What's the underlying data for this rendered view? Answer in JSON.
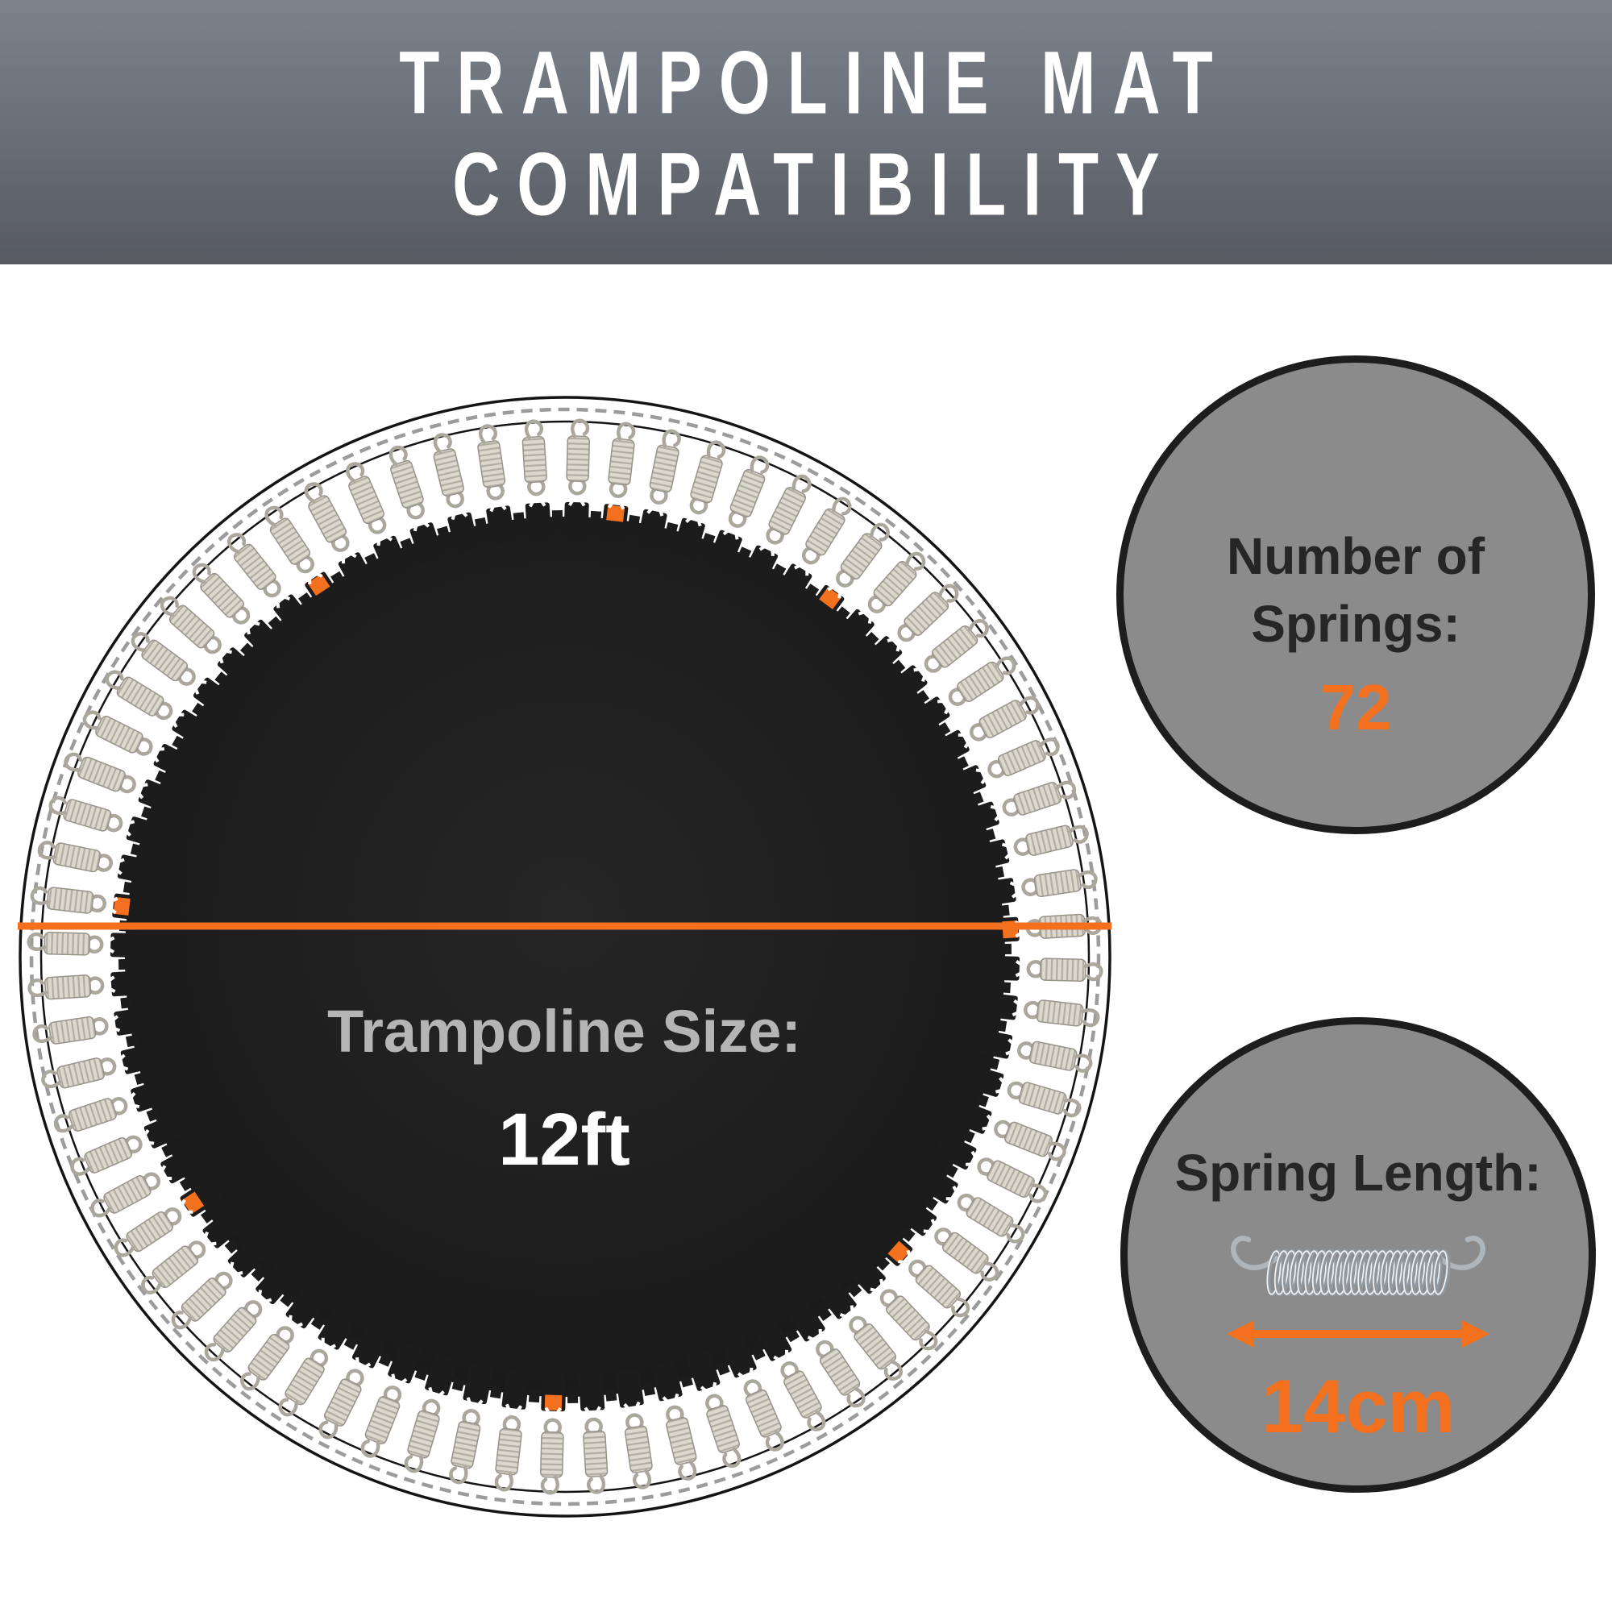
{
  "header": {
    "title_line1": "TRAMPOLINE MAT",
    "title_line2": "COMPATIBILITY"
  },
  "trampoline": {
    "size_label": "Trampoline Size:",
    "size_value": "12ft",
    "spring_count": 72,
    "highlight_tab_indices": [
      8,
      18,
      29,
      37,
      47,
      55,
      61,
      71
    ]
  },
  "info": {
    "springs_circle": {
      "label_line1": "Number of",
      "label_line2": "Springs:",
      "value": "72"
    },
    "length_circle": {
      "label": "Spring Length:",
      "value": "14cm"
    }
  },
  "icons": {
    "spring": "spring-icon",
    "length_arrow": "double-arrow-icon"
  },
  "colors": {
    "accent": "#f3701f",
    "banner_top": "#7d838b",
    "banner_bottom": "#565b62",
    "info_circle_fill": "#8b8b8b",
    "info_circle_border": "#1d1d1d",
    "mat": "#1f1f1f",
    "dark_text": "#262626",
    "muted_text": "#b5b5b5",
    "dashed_circle": "#9c9c9c"
  }
}
